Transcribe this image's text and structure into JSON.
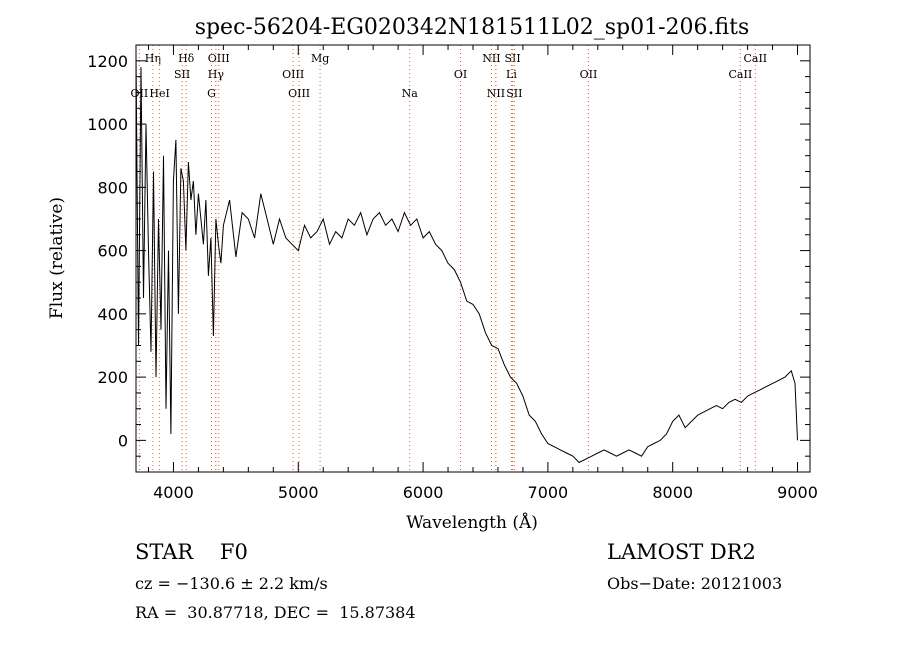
{
  "chart_data": {
    "type": "line",
    "title": "spec-56204-EG020342N181511L02_sp01-206.fits",
    "xlabel": "Wavelength (Å)",
    "ylabel": "Flux (relative)",
    "xlim": [
      3700,
      9100
    ],
    "ylim": [
      -100,
      1250
    ],
    "xticks": [
      4000,
      5000,
      6000,
      7000,
      8000,
      9000
    ],
    "yticks": [
      0,
      200,
      400,
      600,
      800,
      1000,
      1200
    ],
    "grid": false,
    "series": [
      {
        "x": [
          3700,
          3720,
          3740,
          3760,
          3780,
          3800,
          3820,
          3840,
          3860,
          3880,
          3900,
          3920,
          3940,
          3960,
          3980,
          4000,
          4020,
          4040,
          4060,
          4080,
          4100,
          4120,
          4140,
          4160,
          4180,
          4200,
          4220,
          4240,
          4260,
          4280,
          4300,
          4320,
          4340,
          4360,
          4380,
          4400,
          4450,
          4500,
          4550,
          4600,
          4650,
          4700,
          4750,
          4800,
          4850,
          4900,
          4950,
          5000,
          5050,
          5100,
          5150,
          5200,
          5250,
          5300,
          5350,
          5400,
          5450,
          5500,
          5550,
          5600,
          5650,
          5700,
          5750,
          5800,
          5850,
          5900,
          5950,
          6000,
          6050,
          6100,
          6150,
          6200,
          6250,
          6300,
          6350,
          6400,
          6450,
          6500,
          6550,
          6600,
          6650,
          6700,
          6750,
          6800,
          6850,
          6900,
          6950,
          7000,
          7050,
          7100,
          7150,
          7200,
          7250,
          7300,
          7350,
          7400,
          7450,
          7500,
          7550,
          7600,
          7650,
          7700,
          7750,
          7800,
          7850,
          7900,
          7950,
          8000,
          8050,
          8100,
          8150,
          8200,
          8250,
          8300,
          8350,
          8400,
          8450,
          8500,
          8550,
          8600,
          8650,
          8700,
          8750,
          8800,
          8850,
          8900,
          8950,
          8980,
          9000
        ],
        "y": [
          1220,
          300,
          1180,
          450,
          1000,
          600,
          280,
          850,
          200,
          700,
          350,
          900,
          100,
          600,
          20,
          820,
          950,
          400,
          860,
          820,
          600,
          880,
          760,
          820,
          650,
          780,
          700,
          620,
          760,
          520,
          640,
          330,
          700,
          620,
          560,
          680,
          760,
          580,
          720,
          700,
          640,
          780,
          700,
          620,
          700,
          640,
          620,
          600,
          680,
          640,
          660,
          700,
          620,
          660,
          640,
          700,
          680,
          720,
          650,
          700,
          720,
          680,
          700,
          660,
          720,
          680,
          700,
          640,
          660,
          620,
          600,
          560,
          540,
          500,
          440,
          430,
          400,
          340,
          300,
          290,
          240,
          200,
          180,
          140,
          80,
          60,
          20,
          -10,
          -20,
          -30,
          -40,
          -50,
          -70,
          -60,
          -50,
          -40,
          -30,
          -40,
          -50,
          -40,
          -30,
          -40,
          -50,
          -20,
          -10,
          0,
          20,
          60,
          80,
          40,
          60,
          80,
          90,
          100,
          110,
          100,
          120,
          130,
          120,
          140,
          150,
          160,
          170,
          180,
          190,
          200,
          220,
          180,
          0
        ]
      }
    ],
    "lines": [
      {
        "label": "OII",
        "x": 3727,
        "row": 3
      },
      {
        "label": "Hη",
        "x": 3835,
        "row": 1
      },
      {
        "label": "HeI",
        "x": 3889,
        "row": 3
      },
      {
        "label": "Hδ",
        "x": 4102,
        "row": 1
      },
      {
        "label": "SII",
        "x": 4069,
        "row": 2
      },
      {
        "label": "OIII",
        "x": 4363,
        "row": 1
      },
      {
        "label": "Hγ",
        "x": 4340,
        "row": 2
      },
      {
        "label": "G",
        "x": 4305,
        "row": 3
      },
      {
        "label": "OIII",
        "x": 4959,
        "row": 2
      },
      {
        "label": "OIII",
        "x": 5007,
        "row": 3
      },
      {
        "label": "Mg",
        "x": 5175,
        "row": 1
      },
      {
        "label": "Na",
        "x": 5893,
        "row": 3
      },
      {
        "label": "OI",
        "x": 6300,
        "row": 2
      },
      {
        "label": "NII",
        "x": 6548,
        "row": 1
      },
      {
        "label": "NII",
        "x": 6584,
        "row": 3
      },
      {
        "label": "SII",
        "x": 6717,
        "row": 1
      },
      {
        "label": "Li",
        "x": 6708,
        "row": 2
      },
      {
        "label": "SII",
        "x": 6731,
        "row": 3
      },
      {
        "label": "OII",
        "x": 7325,
        "row": 2
      },
      {
        "label": "CaII",
        "x": 8542,
        "row": 2
      },
      {
        "label": "CaII",
        "x": 8662,
        "row": 1
      }
    ]
  },
  "info": {
    "class_line": "STAR    F0",
    "cz_line": "cz = −130.6 ± 2.2 km/s",
    "coords_line": "RA =  30.87718, DEC =  15.87384",
    "survey": "LAMOST DR2",
    "obs_date": "Obs−Date: 20121003"
  }
}
